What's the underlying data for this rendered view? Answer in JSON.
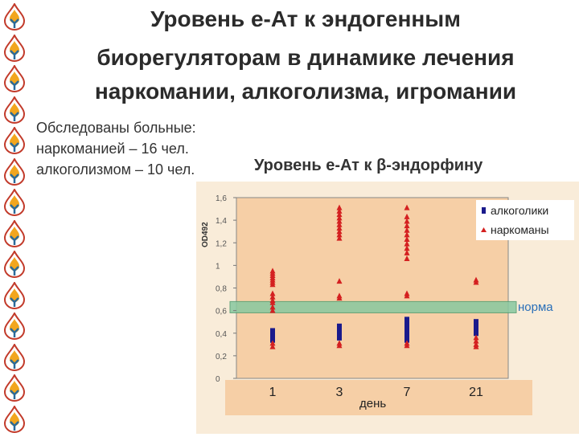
{
  "title": {
    "line1": "Уровень е-Ат к эндогенным",
    "line2": "биорегуляторам в динамике лечения",
    "line3": "наркомании, алкоголизма, игромании"
  },
  "info": {
    "line1": "Обследованы больные:",
    "line2": "наркоманией –   16 чел.",
    "line3": "алкоголизмом –   10 чел."
  },
  "colors": {
    "alcohol": "#1a1a8c",
    "narco": "#d42020",
    "norm_band": "#88c8a0",
    "plot_bg": "#f6cfa6",
    "page_bg": "#f9ecd9"
  },
  "chart_data": {
    "type": "scatter",
    "title": "Уровень е-Ат к β-эндорфину",
    "ylabel": "OD492",
    "xlabel": "день",
    "categories": [
      "1",
      "3",
      "7",
      "21"
    ],
    "y_ticks": [
      "0",
      "0,2",
      "0,4",
      "0,6",
      "0,8",
      "1",
      "1,2",
      "1,4",
      "1,6"
    ],
    "ylim": [
      0,
      1.6
    ],
    "norm_label": "норма",
    "norm_range": [
      0.58,
      0.68
    ],
    "legend_position": "top-right",
    "series": [
      {
        "name": "алкоголики",
        "marker": "square",
        "values": [
          [
            0.42,
            0.4,
            0.38,
            0.36,
            0.34
          ],
          [
            0.46,
            0.44,
            0.42,
            0.4,
            0.38,
            0.36
          ],
          [
            0.52,
            0.5,
            0.48,
            0.46,
            0.44,
            0.42,
            0.4,
            0.38,
            0.36,
            0.34
          ],
          [
            0.5,
            0.48,
            0.46,
            0.44,
            0.42,
            0.4
          ]
        ]
      },
      {
        "name": "наркоманы",
        "marker": "triangle",
        "values": [
          [
            0.95,
            0.93,
            0.91,
            0.89,
            0.87,
            0.85,
            0.83,
            0.75,
            0.72,
            0.69,
            0.67,
            0.63,
            0.6,
            0.31,
            0.28
          ],
          [
            1.51,
            1.48,
            1.45,
            1.42,
            1.39,
            1.36,
            1.33,
            1.3,
            1.27,
            1.24,
            0.86,
            0.73,
            0.71,
            0.31,
            0.29
          ],
          [
            1.51,
            1.43,
            1.39,
            1.35,
            1.31,
            1.27,
            1.23,
            1.19,
            1.15,
            1.11,
            1.06,
            0.75,
            0.73,
            0.31,
            0.29
          ],
          [
            0.87,
            0.85,
            0.36,
            0.33,
            0.3,
            0.28
          ]
        ]
      }
    ]
  }
}
